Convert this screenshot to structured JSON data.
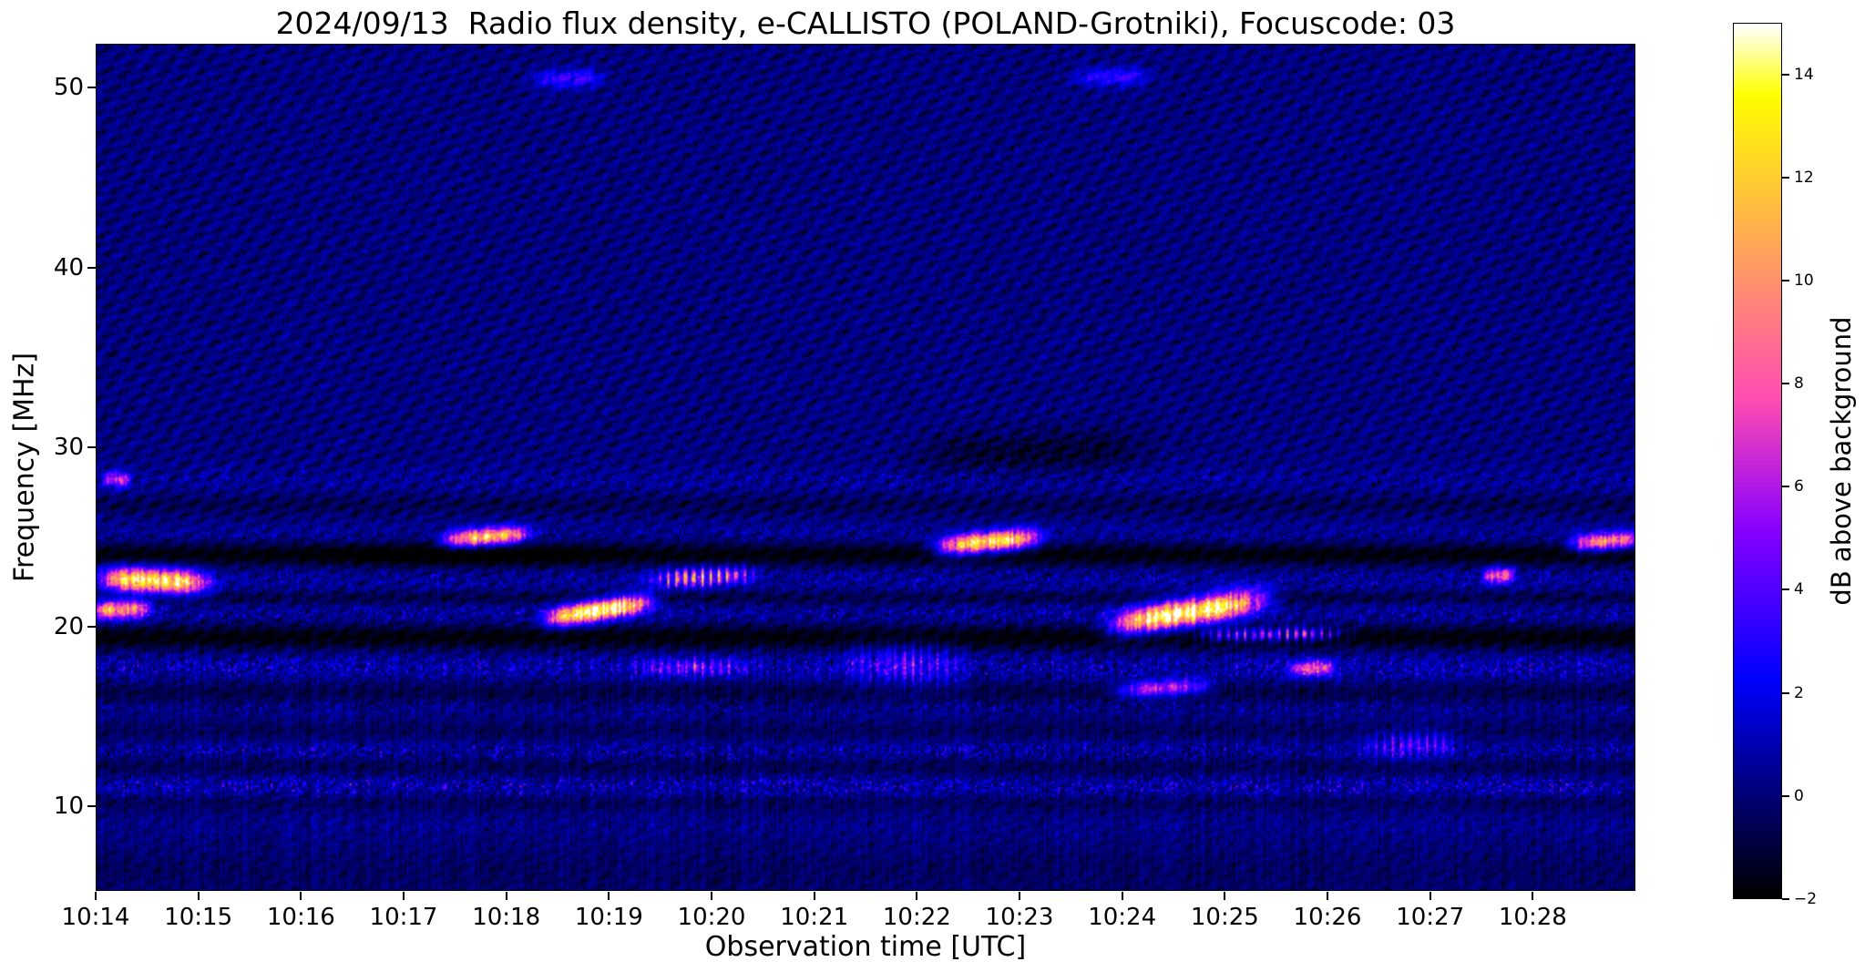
{
  "figure": {
    "title": "2024/09/13  Radio flux density, e-CALLISTO (POLAND-Grotniki), Focuscode: 03",
    "xlabel": "Observation time [UTC]",
    "ylabel": "Frequency [MHz]",
    "colorbar_label": "dB above background",
    "date": "2024/09/13",
    "instrument": "e-CALLISTO",
    "station": "POLAND-Grotniki",
    "focuscode": "03"
  },
  "chart_data": {
    "type": "heatmap",
    "title": "2024/09/13  Radio flux density, e-CALLISTO (POLAND-Grotniki), Focuscode: 03",
    "xlabel": "Observation time [UTC]",
    "ylabel": "Frequency [MHz]",
    "colormap": "gnuplot2",
    "x_ticks": [
      "10:14",
      "10:15",
      "10:16",
      "10:17",
      "10:18",
      "10:19",
      "10:20",
      "10:21",
      "10:22",
      "10:23",
      "10:24",
      "10:25",
      "10:26",
      "10:27",
      "10:28"
    ],
    "time_start_utc": "10:14",
    "time_end_utc": "10:29",
    "duration_min": 15,
    "y_ticks": [
      10,
      20,
      30,
      40,
      50
    ],
    "y_range_mhz": [
      5.3,
      52.45
    ],
    "colorbar": {
      "label": "dB above background",
      "tick_values": [
        -2,
        0,
        2,
        4,
        6,
        8,
        10,
        12,
        14
      ],
      "tick_labels": [
        "−2",
        "0",
        "2",
        "4",
        "6",
        "8",
        "10",
        "12",
        "14"
      ],
      "v_range_db": [
        -2,
        15
      ]
    },
    "background_level_db": 0,
    "noise_spread_db": 1.5,
    "bursts": [
      {
        "t0": 0.0,
        "t1": 1.15,
        "f0": 22.7,
        "f1": 22.4,
        "w": 0.45,
        "peak": 13,
        "dot": false
      },
      {
        "t0": -0.1,
        "t1": 0.55,
        "f0": 20.9,
        "f1": 21.0,
        "w": 0.35,
        "peak": 10,
        "dot": false
      },
      {
        "t0": 3.35,
        "t1": 4.25,
        "f0": 24.8,
        "f1": 25.2,
        "w": 0.33,
        "peak": 12,
        "dot": false
      },
      {
        "t0": 4.35,
        "t1": 5.45,
        "f0": 20.4,
        "f1": 21.4,
        "w": 0.38,
        "peak": 15,
        "dot": false
      },
      {
        "t0": 5.35,
        "t1": 6.45,
        "f0": 22.6,
        "f1": 22.9,
        "w": 0.33,
        "peak": 12,
        "dot": true
      },
      {
        "t0": 8.15,
        "t1": 9.25,
        "f0": 24.4,
        "f1": 25.0,
        "w": 0.38,
        "peak": 13,
        "dot": false
      },
      {
        "t0": 9.85,
        "t1": 11.45,
        "f0": 20.0,
        "f1": 21.6,
        "w": 0.5,
        "peak": 15,
        "dot": false
      },
      {
        "t0": 10.7,
        "t1": 12.2,
        "f0": 19.5,
        "f1": 19.6,
        "w": 0.25,
        "peak": 10,
        "dot": true
      },
      {
        "t0": 9.9,
        "t1": 10.9,
        "f0": 16.4,
        "f1": 16.7,
        "w": 0.3,
        "peak": 6.5,
        "dot": false
      },
      {
        "t0": 14.35,
        "t1": 15.1,
        "f0": 24.6,
        "f1": 24.9,
        "w": 0.33,
        "peak": 10,
        "dot": false
      },
      {
        "t0": 4.2,
        "t1": 5.0,
        "f0": 50.5,
        "f1": 50.6,
        "w": 0.35,
        "peak": 3.2,
        "dot": false
      },
      {
        "t0": 9.5,
        "t1": 10.3,
        "f0": 50.6,
        "f1": 50.7,
        "w": 0.35,
        "peak": 3.2,
        "dot": false
      },
      {
        "t0": 0.05,
        "t1": 0.35,
        "f0": 28.2,
        "f1": 28.2,
        "w": 0.3,
        "peak": 6,
        "dot": false
      },
      {
        "t0": 5.2,
        "t1": 6.4,
        "f0": 17.7,
        "f1": 17.7,
        "w": 0.35,
        "peak": 6,
        "dot": true
      },
      {
        "t0": 7.2,
        "t1": 8.5,
        "f0": 18.0,
        "f1": 17.8,
        "w": 0.8,
        "peak": 4.5,
        "dot": true
      },
      {
        "t0": 12.3,
        "t1": 13.3,
        "f0": 13.3,
        "f1": 13.5,
        "w": 0.5,
        "peak": 5,
        "dot": true
      },
      {
        "t0": 13.5,
        "t1": 13.85,
        "f0": 22.8,
        "f1": 22.9,
        "w": 0.3,
        "peak": 8,
        "dot": false
      },
      {
        "t0": 11.6,
        "t1": 12.1,
        "f0": 17.6,
        "f1": 17.7,
        "w": 0.3,
        "peak": 7,
        "dot": false
      }
    ],
    "dark_patches": [
      {
        "t0": 7.9,
        "t1": 10.4,
        "f0": 29.4,
        "f1": 30.1,
        "w": 0.8,
        "peak": -1.3,
        "dot": false
      },
      {
        "t0": 2.0,
        "t1": 5.0,
        "f0": 24.0,
        "f1": 24.0,
        "w": 0.5,
        "peak": -0.8,
        "dot": false
      }
    ],
    "rfi_bands": [
      {
        "f": 11.1,
        "hw": 0.45,
        "peak": 5.5,
        "den": 0.5
      },
      {
        "f": 13.0,
        "hw": 0.4,
        "peak": 4.5,
        "den": 0.45
      },
      {
        "f": 15.5,
        "hw": 0.35,
        "peak": 3.0,
        "den": 0.35
      },
      {
        "f": 17.7,
        "hw": 0.55,
        "peak": 4.5,
        "den": 0.55
      },
      {
        "f": 20.7,
        "hw": 0.45,
        "peak": 3.5,
        "den": 0.4
      },
      {
        "f": 22.6,
        "hw": 0.5,
        "peak": 3.0,
        "den": 0.45
      },
      {
        "f": 25.2,
        "hw": 0.4,
        "peak": 2.5,
        "den": 0.4
      },
      {
        "f": 28.2,
        "hw": 0.5,
        "peak": 2.5,
        "den": 0.5
      },
      {
        "f": 8.8,
        "hw": 0.3,
        "peak": 1.5,
        "den": 0.3
      }
    ],
    "absorption_lanes": [
      {
        "f": 19.4,
        "hw": 0.5,
        "delta": -2.0
      },
      {
        "f": 24.0,
        "hw": 0.45,
        "delta": -2.0
      },
      {
        "f": 21.6,
        "hw": 0.28,
        "delta": -1.0
      },
      {
        "f": 16.3,
        "hw": 0.55,
        "delta": -0.9
      },
      {
        "f": 12.2,
        "hw": 0.5,
        "delta": -0.8
      },
      {
        "f": 10.2,
        "hw": 0.35,
        "delta": -0.7
      },
      {
        "f": 14.2,
        "hw": 0.4,
        "delta": -0.6
      },
      {
        "f": 26.8,
        "hw": 0.4,
        "delta": -0.7
      },
      {
        "f": 6.3,
        "hw": 1.0,
        "delta": -0.5
      }
    ]
  }
}
